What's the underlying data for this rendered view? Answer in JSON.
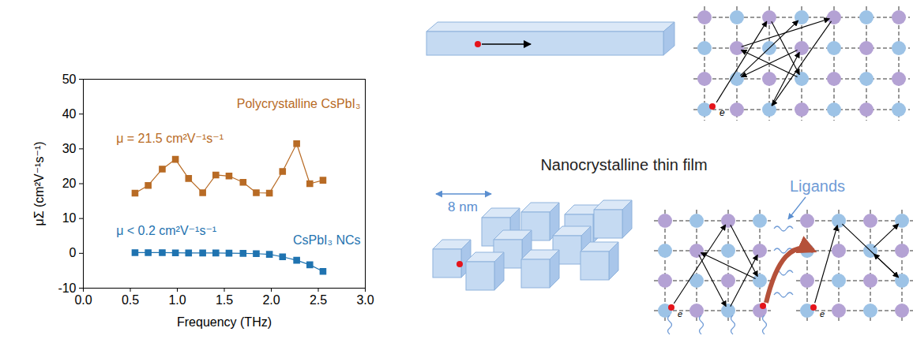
{
  "chart_data": {
    "type": "line",
    "xlabel": "Frequency (THz)",
    "ylabel": "μΣ (cm²V⁻¹s⁻¹)",
    "x": [
      0.55,
      0.69,
      0.84,
      0.98,
      1.12,
      1.27,
      1.41,
      1.55,
      1.7,
      1.84,
      1.98,
      2.12,
      2.27,
      2.41,
      2.55
    ],
    "series": [
      {
        "name": "Polycrystalline CsPbI₃",
        "color": "#b86b25",
        "marker": "square",
        "values": [
          17.3,
          19.5,
          24.2,
          27.0,
          21.5,
          17.4,
          22.5,
          22.2,
          20.4,
          17.4,
          17.3,
          23.5,
          31.5,
          20.0,
          21.0
        ]
      },
      {
        "name": "CsPbI₃ NCs",
        "color": "#1f73b0",
        "marker": "square",
        "values": [
          0.2,
          0.2,
          0.2,
          0.15,
          0.1,
          0.1,
          0.1,
          0.05,
          0.0,
          -0.1,
          -0.3,
          -1.0,
          -2.0,
          -3.3,
          -5.2
        ]
      }
    ],
    "annotations": [
      "μ = 21.5 cm²V⁻¹s⁻¹",
      "μ < 0.2 cm²V⁻¹s⁻¹"
    ],
    "xlim": [
      0,
      3
    ],
    "xticks": [
      {
        "value": 0,
        "label": "0.0"
      },
      {
        "value": 0.5,
        "label": "0.5"
      },
      {
        "value": 1,
        "label": "1.0"
      },
      {
        "value": 1.5,
        "label": "1.5"
      },
      {
        "value": 2,
        "label": "2.0"
      },
      {
        "value": 2.5,
        "label": "2.5"
      },
      {
        "value": 3,
        "label": "3.0"
      }
    ],
    "ylim": [
      -10,
      50
    ],
    "yticks": [
      -10,
      0,
      10,
      20,
      30,
      40,
      50
    ],
    "grid": false
  },
  "diagram": {
    "title": "Nanocrystalline thin film",
    "size_label": "8 nm",
    "ligand_label": "Ligands",
    "electron_label": "e"
  }
}
